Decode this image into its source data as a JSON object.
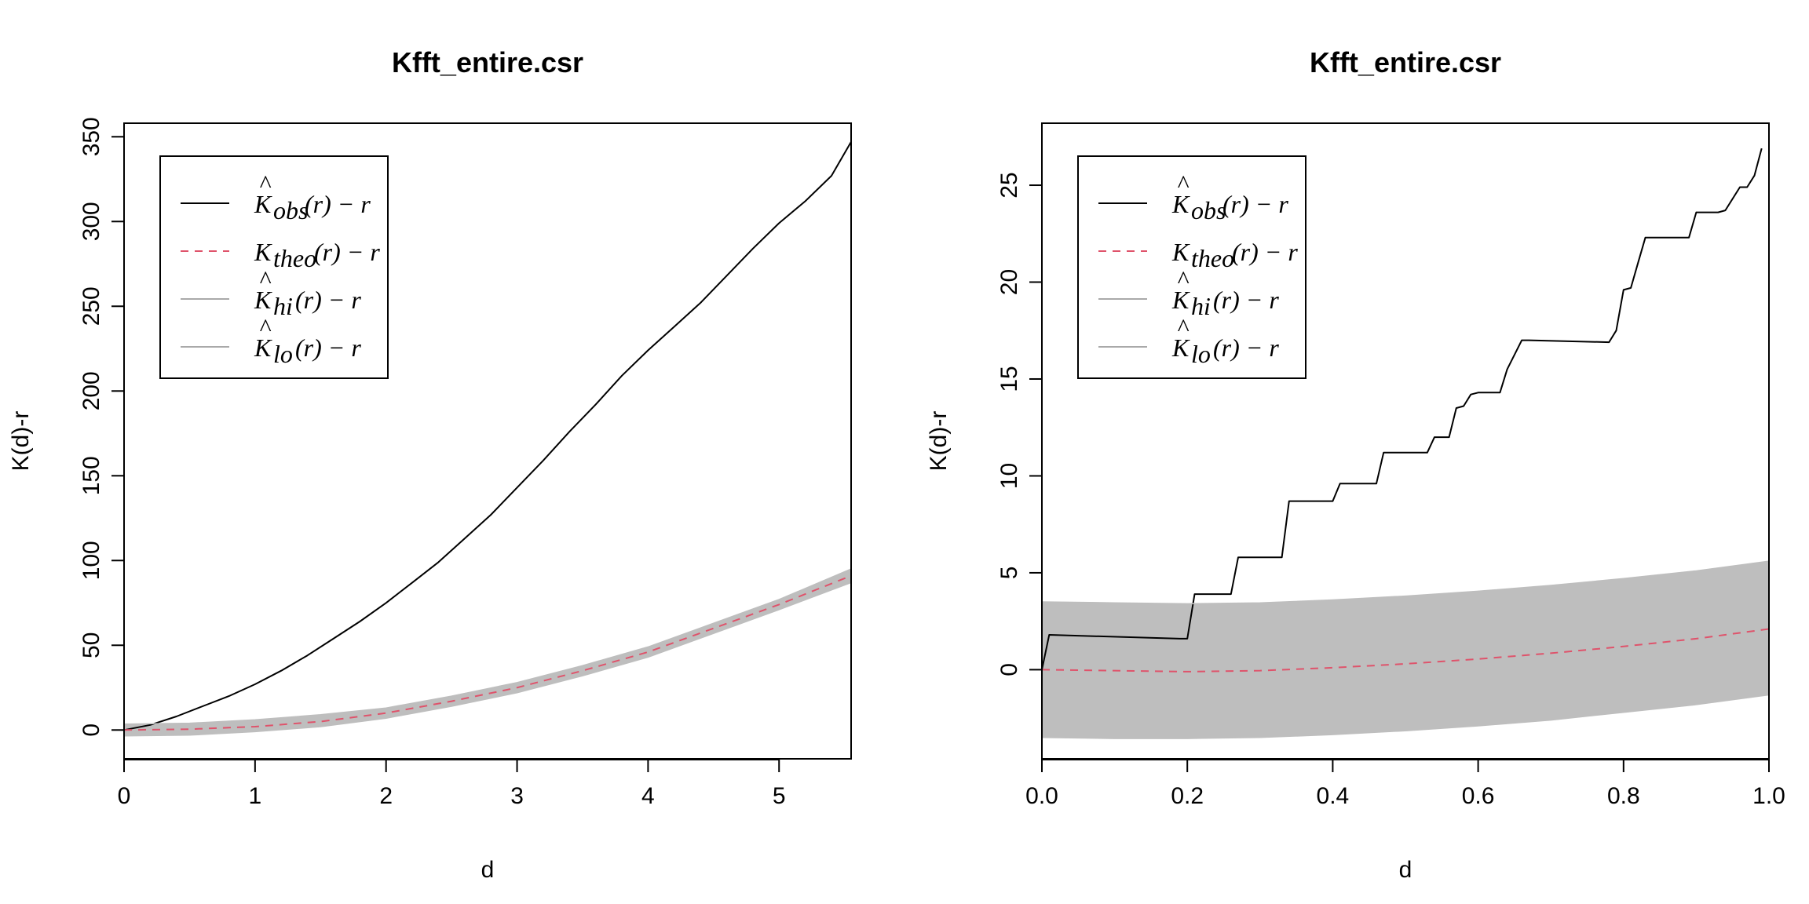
{
  "colors": {
    "obs": "#000000",
    "theo": "#DF536B",
    "envelope": "#BEBEBE",
    "envelope_line": "#A9A9A9"
  },
  "chart_data": [
    {
      "type": "line",
      "title": "Kfft_entire.csr",
      "xlabel": "d",
      "ylabel": "K(d)-r",
      "xlim": [
        0,
        5.55
      ],
      "ylim": [
        -17,
        358
      ],
      "xticks": [
        "0",
        "1",
        "2",
        "3",
        "4",
        "5"
      ],
      "yticks": [
        "0",
        "50",
        "100",
        "150",
        "200",
        "250",
        "300",
        "350"
      ],
      "grid": false,
      "legend_position": "top-left",
      "legend": [
        {
          "base": "K",
          "hat": true,
          "sub": "obs",
          "tail": "(r) − r"
        },
        {
          "base": "K",
          "hat": false,
          "sub": "theo",
          "tail": "(r) − r"
        },
        {
          "base": "K",
          "hat": true,
          "sub": "hi",
          "tail": "(r) − r"
        },
        {
          "base": "K",
          "hat": true,
          "sub": "lo",
          "tail": "(r) − r"
        }
      ],
      "series": [
        {
          "key": "obs",
          "style": "solid",
          "x": [
            0,
            0.2,
            0.4,
            0.6,
            0.8,
            1.0,
            1.2,
            1.4,
            1.6,
            1.8,
            2.0,
            2.2,
            2.4,
            2.6,
            2.8,
            3.0,
            3.2,
            3.4,
            3.6,
            3.8,
            4.0,
            4.2,
            4.4,
            4.6,
            4.8,
            5.0,
            5.2,
            5.4,
            5.55
          ],
          "values": [
            0,
            3,
            8,
            14,
            20,
            27,
            35,
            44,
            54,
            64,
            75,
            87,
            99,
            113,
            127,
            143,
            159,
            176,
            192,
            209,
            224,
            238,
            252,
            268,
            284,
            299,
            312,
            327,
            347
          ]
        },
        {
          "key": "theo",
          "style": "dashed",
          "x": [
            0,
            0.5,
            1.0,
            1.5,
            2.0,
            2.5,
            3.0,
            3.5,
            4.0,
            4.5,
            5.0,
            5.55
          ],
          "values": [
            0,
            0.5,
            2,
            5,
            10,
            17,
            25,
            35,
            46,
            60,
            74,
            91
          ]
        },
        {
          "key": "hi",
          "style": "solid",
          "x": [
            0,
            0.5,
            1.0,
            1.5,
            2.0,
            2.5,
            3.0,
            3.5,
            4.0,
            4.5,
            5.0,
            5.55
          ],
          "values": [
            3.5,
            4,
            6,
            9,
            13,
            20,
            28,
            38,
            49,
            63,
            77,
            95
          ]
        },
        {
          "key": "lo",
          "style": "solid",
          "x": [
            0,
            0.5,
            1.0,
            1.5,
            2.0,
            2.5,
            3.0,
            3.5,
            4.0,
            4.5,
            5.0,
            5.55
          ],
          "values": [
            -3.5,
            -3,
            -1,
            2,
            7,
            14,
            22,
            32,
            43,
            57,
            71,
            87
          ]
        }
      ]
    },
    {
      "type": "line",
      "title": "Kfft_entire.csr",
      "xlabel": "d",
      "ylabel": "K(d)-r",
      "xlim": [
        -0.0,
        1.0
      ],
      "ylim": [
        -4.6,
        28.2
      ],
      "xticks": [
        "0.0",
        "0.2",
        "0.4",
        "0.6",
        "0.8",
        "1.0"
      ],
      "yticks": [
        "0",
        "5",
        "10",
        "15",
        "20",
        "25"
      ],
      "grid": false,
      "legend_position": "top-left",
      "legend": [
        {
          "base": "K",
          "hat": true,
          "sub": "obs",
          "tail": "(r) − r"
        },
        {
          "base": "K",
          "hat": false,
          "sub": "theo",
          "tail": "(r) − r"
        },
        {
          "base": "K",
          "hat": true,
          "sub": "hi",
          "tail": "(r) − r"
        },
        {
          "base": "K",
          "hat": true,
          "sub": "lo",
          "tail": "(r) − r"
        }
      ],
      "series": [
        {
          "key": "obs",
          "style": "solid",
          "x": [
            0,
            0.01,
            0.19,
            0.2,
            0.21,
            0.25,
            0.26,
            0.27,
            0.32,
            0.33,
            0.34,
            0.38,
            0.39,
            0.4,
            0.41,
            0.46,
            0.47,
            0.48,
            0.52,
            0.53,
            0.54,
            0.56,
            0.57,
            0.58,
            0.59,
            0.6,
            0.61,
            0.63,
            0.64,
            0.66,
            0.67,
            0.78,
            0.79,
            0.8,
            0.81,
            0.82,
            0.83,
            0.84,
            0.88,
            0.89,
            0.9,
            0.93,
            0.94,
            0.96,
            0.97,
            0.98,
            0.99
          ],
          "values": [
            0,
            1.8,
            1.6,
            1.6,
            3.9,
            3.9,
            3.9,
            5.8,
            5.8,
            5.8,
            8.7,
            8.7,
            8.7,
            8.7,
            9.6,
            9.6,
            11.2,
            11.2,
            11.2,
            11.2,
            12,
            12,
            13.5,
            13.6,
            14.2,
            14.3,
            14.3,
            14.3,
            15.5,
            17.0,
            17.0,
            16.9,
            17.5,
            19.6,
            19.7,
            21.0,
            22.3,
            22.3,
            22.3,
            22.3,
            23.6,
            23.6,
            23.7,
            24.9,
            24.9,
            25.5,
            26.9
          ]
        },
        {
          "key": "theo",
          "style": "dashed",
          "x": [
            0,
            0.1,
            0.2,
            0.3,
            0.4,
            0.5,
            0.6,
            0.7,
            0.8,
            0.9,
            1.0
          ],
          "values": [
            0,
            -0.05,
            -0.1,
            -0.05,
            0.1,
            0.3,
            0.55,
            0.85,
            1.2,
            1.6,
            2.1
          ]
        },
        {
          "key": "hi",
          "style": "solid",
          "x": [
            0,
            0.1,
            0.2,
            0.3,
            0.4,
            0.5,
            0.6,
            0.7,
            0.8,
            0.9,
            1.0
          ],
          "values": [
            3.5,
            3.45,
            3.4,
            3.45,
            3.6,
            3.8,
            4.05,
            4.35,
            4.7,
            5.1,
            5.6
          ]
        },
        {
          "key": "lo",
          "style": "solid",
          "x": [
            0,
            0.1,
            0.2,
            0.3,
            0.4,
            0.5,
            0.6,
            0.7,
            0.8,
            0.9,
            1.0
          ],
          "values": [
            -3.5,
            -3.55,
            -3.55,
            -3.5,
            -3.35,
            -3.15,
            -2.9,
            -2.6,
            -2.2,
            -1.8,
            -1.3
          ]
        }
      ]
    }
  ]
}
